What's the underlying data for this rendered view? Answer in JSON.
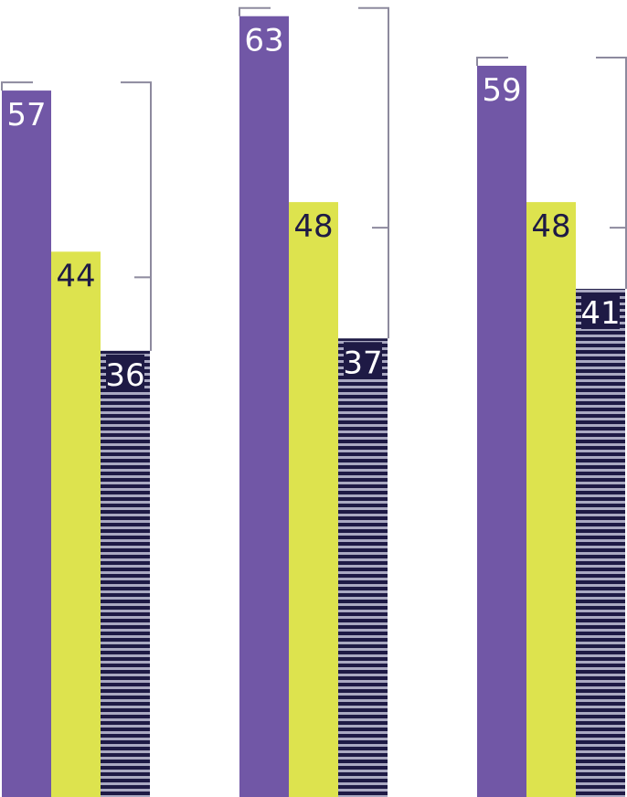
{
  "chart_data": {
    "type": "bar",
    "title": "",
    "xlabel": "",
    "ylabel": "",
    "ylim": [
      0,
      66
    ],
    "grid": false,
    "legend": "none",
    "groups": [
      {
        "values": [
          57,
          44,
          36
        ],
        "labels": [
          "57",
          "44",
          "36"
        ]
      },
      {
        "values": [
          63,
          48,
          37
        ],
        "labels": [
          "63",
          "48",
          "37"
        ]
      },
      {
        "values": [
          59,
          48,
          41
        ],
        "labels": [
          "59",
          "48",
          "41"
        ]
      }
    ],
    "series_colors": [
      "#7157a6",
      "#dde34e",
      "#1e1a45"
    ],
    "stripe_color": "#aaa9c2",
    "bracket_color": "#8d8a9e",
    "label_colors": [
      "#ffffff",
      "#1e1a45",
      "#ffffff"
    ]
  }
}
